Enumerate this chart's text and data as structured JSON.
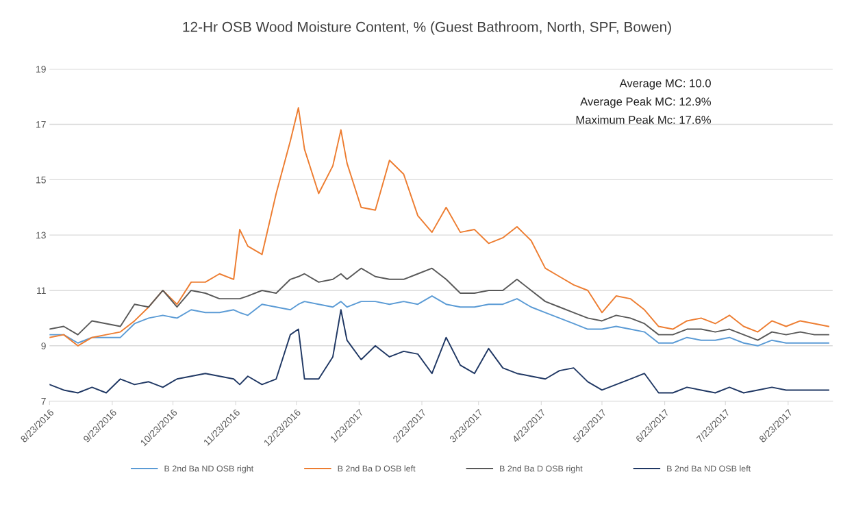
{
  "chart_data": {
    "type": "line",
    "title": "12-Hr OSB Wood Moisture Content, % (Guest Bathroom, North, SPF, Bowen)",
    "annotations": [
      "Average MC: 10.0",
      "Average Peak MC: 12.9%",
      "Maximum Peak Mc: 17.6%"
    ],
    "x": [
      "2016-08-23",
      "2016-08-30",
      "2016-09-06",
      "2016-09-13",
      "2016-09-20",
      "2016-09-27",
      "2016-10-04",
      "2016-10-11",
      "2016-10-18",
      "2016-10-25",
      "2016-11-01",
      "2016-11-08",
      "2016-11-15",
      "2016-11-22",
      "2016-11-25",
      "2016-11-29",
      "2016-12-06",
      "2016-12-13",
      "2016-12-20",
      "2016-12-24",
      "2016-12-27",
      "2017-01-03",
      "2017-01-10",
      "2017-01-14",
      "2017-01-17",
      "2017-01-24",
      "2017-01-31",
      "2017-02-07",
      "2017-02-14",
      "2017-02-21",
      "2017-02-28",
      "2017-03-07",
      "2017-03-14",
      "2017-03-21",
      "2017-03-28",
      "2017-04-04",
      "2017-04-11",
      "2017-04-18",
      "2017-04-25",
      "2017-05-02",
      "2017-05-09",
      "2017-05-16",
      "2017-05-23",
      "2017-05-30",
      "2017-06-06",
      "2017-06-13",
      "2017-06-20",
      "2017-06-27",
      "2017-07-04",
      "2017-07-11",
      "2017-07-18",
      "2017-07-25",
      "2017-08-01",
      "2017-08-08",
      "2017-08-15",
      "2017-08-22",
      "2017-08-29",
      "2017-09-05",
      "2017-09-12"
    ],
    "series": [
      {
        "name": "B 2nd Ba ND OSB right",
        "color": "#5b9bd5",
        "values": [
          9.4,
          9.4,
          9.1,
          9.3,
          9.3,
          9.3,
          9.8,
          10.0,
          10.1,
          10.0,
          10.3,
          10.2,
          10.2,
          10.3,
          10.2,
          10.1,
          10.5,
          10.4,
          10.3,
          10.5,
          10.6,
          10.5,
          10.4,
          10.6,
          10.4,
          10.6,
          10.6,
          10.5,
          10.6,
          10.5,
          10.8,
          10.5,
          10.4,
          10.4,
          10.5,
          10.5,
          10.7,
          10.4,
          10.2,
          10.0,
          9.8,
          9.6,
          9.6,
          9.7,
          9.6,
          9.5,
          9.1,
          9.1,
          9.3,
          9.2,
          9.2,
          9.3,
          9.1,
          9.0,
          9.2,
          9.1,
          9.1,
          9.1,
          9.1
        ]
      },
      {
        "name": "B 2nd Ba D OSB left",
        "color": "#ed7d31",
        "values": [
          9.3,
          9.4,
          9.0,
          9.3,
          9.4,
          9.5,
          9.9,
          10.4,
          11.0,
          10.5,
          11.3,
          11.3,
          11.6,
          11.4,
          13.2,
          12.6,
          12.3,
          14.5,
          16.4,
          17.6,
          16.1,
          14.5,
          15.5,
          16.8,
          15.6,
          14.0,
          13.9,
          15.7,
          15.2,
          13.7,
          13.1,
          14.0,
          13.1,
          13.2,
          12.7,
          12.9,
          13.3,
          12.8,
          11.8,
          11.5,
          11.2,
          11.0,
          10.2,
          10.8,
          10.7,
          10.3,
          9.7,
          9.6,
          9.9,
          10.0,
          9.8,
          10.1,
          9.7,
          9.5,
          9.9,
          9.7,
          9.9,
          9.8,
          9.7
        ]
      },
      {
        "name": "B 2nd Ba D OSB right",
        "color": "#595959",
        "values": [
          9.6,
          9.7,
          9.4,
          9.9,
          9.8,
          9.7,
          10.5,
          10.4,
          11.0,
          10.4,
          11.0,
          10.9,
          10.7,
          10.7,
          10.7,
          10.8,
          11.0,
          10.9,
          11.4,
          11.5,
          11.6,
          11.3,
          11.4,
          11.6,
          11.4,
          11.8,
          11.5,
          11.4,
          11.4,
          11.6,
          11.8,
          11.4,
          10.9,
          10.9,
          11.0,
          11.0,
          11.4,
          11.0,
          10.6,
          10.4,
          10.2,
          10.0,
          9.9,
          10.1,
          10.0,
          9.8,
          9.4,
          9.4,
          9.6,
          9.6,
          9.5,
          9.6,
          9.4,
          9.2,
          9.5,
          9.4,
          9.5,
          9.4,
          9.4
        ]
      },
      {
        "name": "B 2nd Ba ND OSB left",
        "color": "#203864",
        "values": [
          7.6,
          7.4,
          7.3,
          7.5,
          7.3,
          7.8,
          7.6,
          7.7,
          7.5,
          7.8,
          7.9,
          8.0,
          7.9,
          7.8,
          7.6,
          7.9,
          7.6,
          7.8,
          9.4,
          9.6,
          7.8,
          7.8,
          8.6,
          10.3,
          9.2,
          8.5,
          9.0,
          8.6,
          8.8,
          8.7,
          8.0,
          9.3,
          8.3,
          8.0,
          8.9,
          8.2,
          8.0,
          7.9,
          7.8,
          8.1,
          8.2,
          7.7,
          7.4,
          7.6,
          7.8,
          8.0,
          7.3,
          7.3,
          7.5,
          7.4,
          7.3,
          7.5,
          7.3,
          7.4,
          7.5,
          7.4,
          7.4,
          7.4,
          7.4
        ]
      }
    ],
    "xlim": [
      "2016-08-23",
      "2017-09-14"
    ],
    "xticks": [
      {
        "value": "2016-08-23",
        "label": "8/23/2016"
      },
      {
        "value": "2016-09-23",
        "label": "9/23/2016"
      },
      {
        "value": "2016-10-23",
        "label": "10/23/2016"
      },
      {
        "value": "2016-11-23",
        "label": "11/23/2016"
      },
      {
        "value": "2016-12-23",
        "label": "12/23/2016"
      },
      {
        "value": "2017-01-23",
        "label": "1/23/2017"
      },
      {
        "value": "2017-02-23",
        "label": "2/23/2017"
      },
      {
        "value": "2017-03-23",
        "label": "3/23/2017"
      },
      {
        "value": "2017-04-23",
        "label": "4/23/2017"
      },
      {
        "value": "2017-05-23",
        "label": "5/23/2017"
      },
      {
        "value": "2017-06-23",
        "label": "6/23/2017"
      },
      {
        "value": "2017-07-23",
        "label": "7/23/2017"
      },
      {
        "value": "2017-08-23",
        "label": "8/23/2017"
      }
    ],
    "ylim": [
      7,
      19
    ],
    "yticks": [
      7,
      9,
      11,
      13,
      15,
      17,
      19
    ],
    "grid": "y",
    "legend": "bottom",
    "marker": "none",
    "line_style": "solid"
  }
}
